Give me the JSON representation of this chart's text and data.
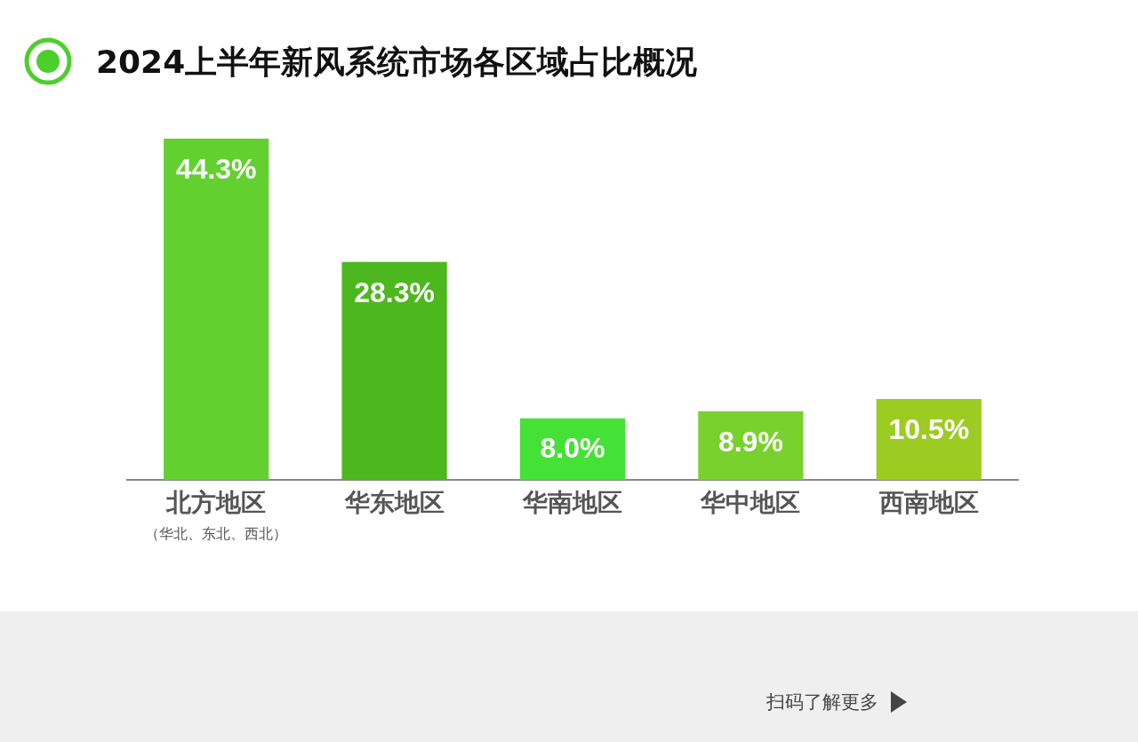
{
  "chart_data": {
    "type": "bar",
    "title": "2024上半年新风系统市场各区域占比概况",
    "categories": [
      "北方地区（华北、东北、西北）",
      "华东地区",
      "华南地区",
      "华中地区",
      "西南地区"
    ],
    "values": [
      44.3,
      28.3,
      8.0,
      8.9,
      10.5
    ],
    "value_labels": [
      "44.3%",
      "28.3%",
      "8.0%",
      "8.9%",
      "10.5%"
    ],
    "colors": [
      "#62d12f",
      "#4cb81d",
      "#44e236",
      "#78d12c",
      "#9ccb22"
    ],
    "grid": false,
    "legend": false,
    "annotations": [
      "扫码了解更多"
    ]
  }
}
